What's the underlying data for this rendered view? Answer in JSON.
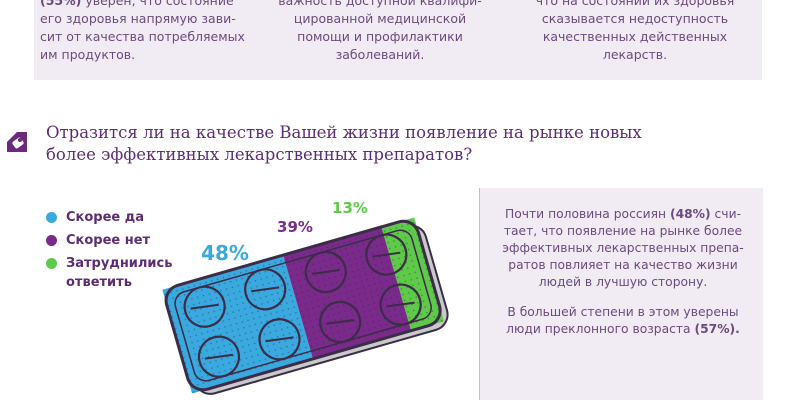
{
  "top_texts": [
    {
      "pre": "(55%)",
      "text": " уверен, что состояние\nего здоровья напрямую зави-\nсит от качества потребляемых\nим продуктов."
    },
    {
      "pre": "",
      "text": "важность доступной квалифи-\nцированной медицинской\nпомощи и профилактики\nзаболеваний."
    },
    {
      "pre": "",
      "text": "что на состоянии их здоровья\nсказывается недоступность\nкачественных действенных\nлекарств."
    }
  ],
  "question": "Отразится ли на качестве Вашей жизни появление на рынке новых более эффективных лекарственных препаратов?",
  "info": {
    "p1_a": "Почти половина россиян ",
    "p1_pct": "(48%)",
    "p1_b": " счи-\nтает, что появление на рынке более\nэффективных лекарственных препа-\nратов повлияет на качество жизни\nлюдей в лучшую сторону.",
    "p2_a": "В большей степени в этом уверены\nлюди преклонного возраста ",
    "p2_pct": "(57%)."
  },
  "colors": {
    "text_purple": "#6b4a7e",
    "title_purple": "#5d2d73",
    "panel_bg": "#f1ecf4",
    "outline": "#3b2c48"
  },
  "chart_data": {
    "type": "pie",
    "title": "",
    "categories": [
      "Скорее да",
      "Скорее нет",
      "Затруднились ответить"
    ],
    "values": [
      48,
      39,
      13
    ],
    "labels": [
      "48%",
      "39%",
      "13%"
    ],
    "colors": [
      "#3aa9e0",
      "#7a2a8a",
      "#5fc94a"
    ],
    "legend_position": "left",
    "style": "blister-pack"
  }
}
